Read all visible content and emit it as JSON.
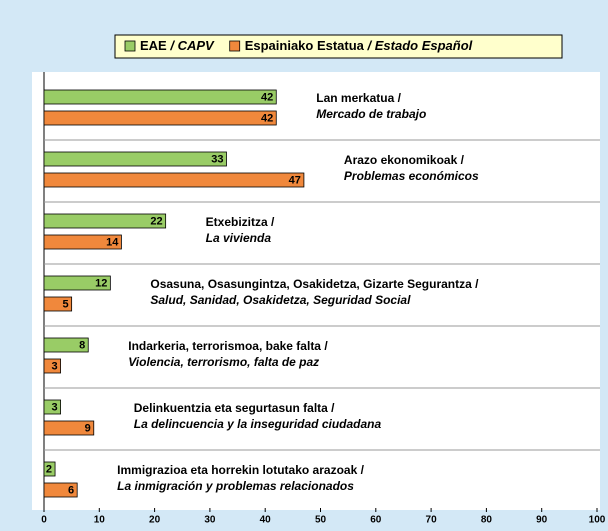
{
  "chart_data": {
    "type": "bar",
    "orientation": "horizontal",
    "categories": [
      [
        "Lan merkatua /",
        "Mercado de trabajo"
      ],
      [
        "Arazo ekonomikoak /",
        "Problemas  económicos"
      ],
      [
        "Etxebizitza /",
        "La vivienda"
      ],
      [
        "Osasuna, Osasungintza, Osakidetza, Gizarte Segurantza /",
        "Salud, Sanidad, Osakidetza, Seguridad Social"
      ],
      [
        "Indarkeria, terrorismoa, bake falta /",
        "Violencia, terrorismo, falta de paz"
      ],
      [
        "Delinkuentzia eta segurtasun falta /",
        "La delincuencia y la inseguridad ciudadana"
      ],
      [
        "Immigrazioa eta horrekin lotutako arazoak /",
        "La inmigración y problemas relacionados"
      ]
    ],
    "series": [
      {
        "name": "EAE / CAPV",
        "color": "#99cc66",
        "values": [
          42,
          33,
          22,
          12,
          8,
          3,
          2
        ]
      },
      {
        "name": "Espainiako Estatua / Estado Español",
        "color": "#f0883c",
        "values": [
          42,
          47,
          14,
          5,
          3,
          9,
          6
        ]
      }
    ],
    "xlim": [
      0,
      100
    ],
    "xticks": [
      0,
      10,
      20,
      30,
      40,
      50,
      60,
      70,
      80,
      90,
      100
    ]
  }
}
